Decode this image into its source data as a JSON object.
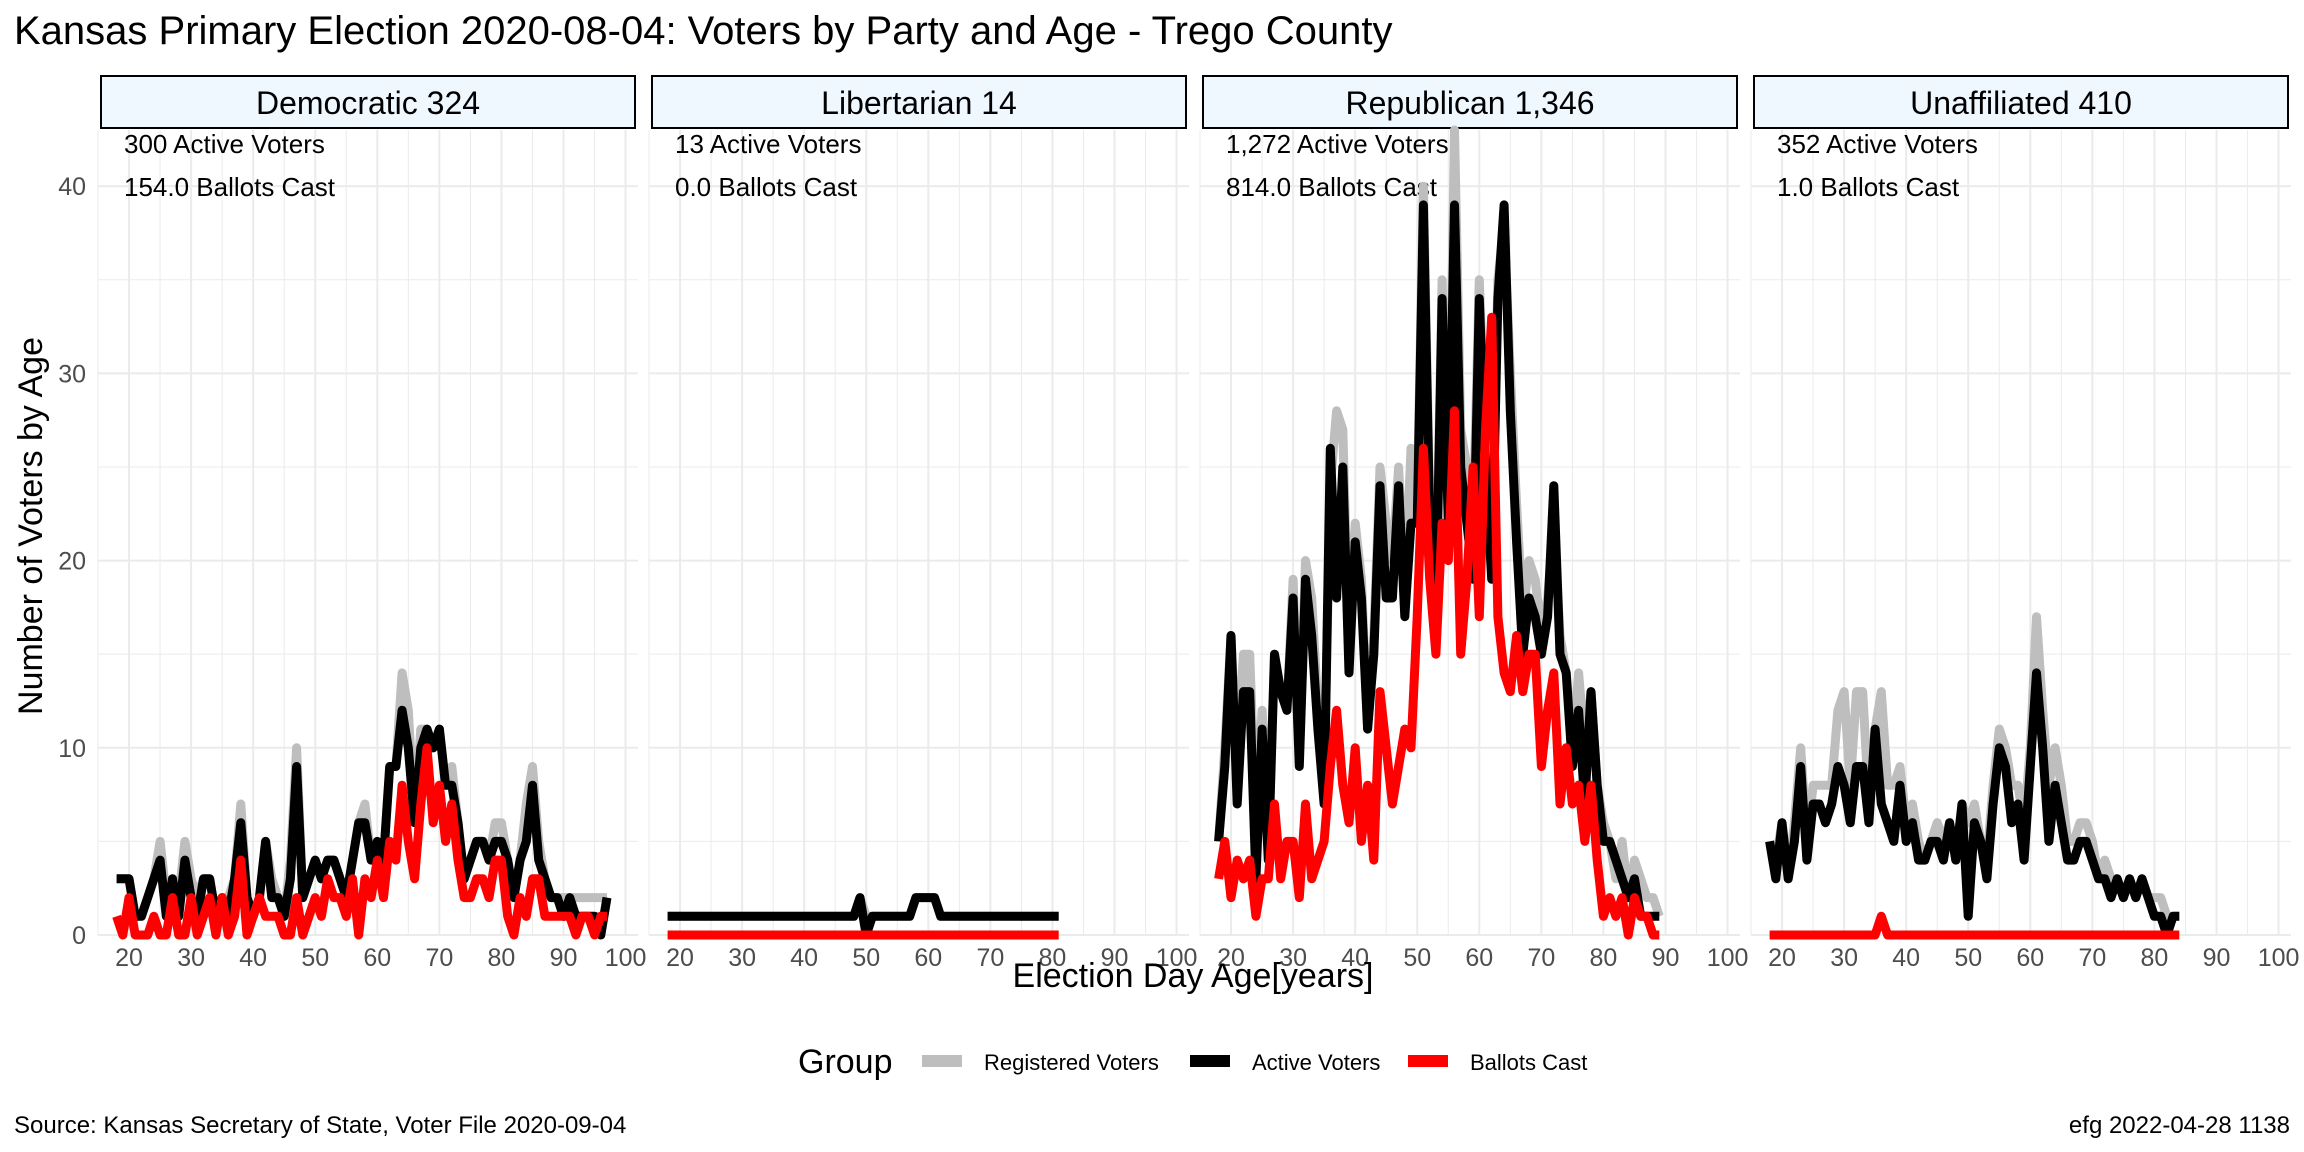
{
  "title": "Kansas Primary Election 2020-08-04:  Voters by Party and Age - Trego County",
  "xlabel": "Election Day Age[years]",
  "ylabel": "Number of Voters by Age",
  "legend": {
    "title": "Group",
    "items": [
      {
        "label": "Registered Voters",
        "color": "#bebebe"
      },
      {
        "label": "Active Voters",
        "color": "#000000"
      },
      {
        "label": "Ballots Cast",
        "color": "#ff0000"
      }
    ]
  },
  "caption_left": "Source:  Kansas Secretary of State, Voter File  2020-09-04",
  "caption_right": "efg 2022-04-28 1138",
  "chart_data": {
    "type": "line",
    "xlim": [
      15,
      102
    ],
    "ylim": [
      0,
      43
    ],
    "x_ticks": [
      "20",
      "30",
      "40",
      "50",
      "60",
      "70",
      "80",
      "90",
      "100"
    ],
    "y_ticks": [
      "0",
      "10",
      "20",
      "30",
      "40"
    ],
    "grid": true,
    "legend_position": "bottom",
    "colors": {
      "registered": "#bebebe",
      "active": "#000000",
      "ballots": "#ff0000"
    },
    "panels": [
      {
        "strip": "Democratic 324",
        "note1": "300 Active Voters",
        "note2": "154.0 Ballots Cast",
        "series": [
          {
            "name": "Registered Voters",
            "key": "registered",
            "x_start": 18,
            "values": [
              3,
              3,
              3,
              1,
              1,
              2,
              3,
              5,
              2,
              3,
              2,
              5,
              3,
              2,
              3,
              3,
              1,
              2,
              2,
              3,
              7,
              2,
              1,
              2,
              5,
              3,
              2,
              1,
              4,
              10,
              2,
              3,
              4,
              3,
              4,
              4,
              3,
              2,
              4,
              6,
              7,
              4,
              5,
              4,
              9,
              9,
              14,
              12,
              6,
              11,
              11,
              10,
              11,
              8,
              9,
              6,
              3,
              4,
              5,
              5,
              4,
              6,
              6,
              4,
              2,
              4,
              7,
              9,
              5,
              3,
              2,
              2,
              2,
              2,
              2,
              2,
              2,
              2,
              2,
              2
            ]
          },
          {
            "name": "Active Voters",
            "key": "active",
            "x_start": 18,
            "values": [
              3,
              3,
              3,
              1,
              1,
              2,
              3,
              4,
              1,
              3,
              1,
              4,
              2,
              1,
              3,
              3,
              1,
              2,
              1,
              3,
              6,
              2,
              1,
              2,
              5,
              2,
              2,
              1,
              3,
              9,
              2,
              3,
              4,
              3,
              4,
              4,
              3,
              2,
              4,
              6,
              6,
              4,
              5,
              4,
              9,
              9,
              12,
              10,
              6,
              10,
              11,
              10,
              11,
              8,
              8,
              6,
              3,
              4,
              5,
              5,
              4,
              5,
              5,
              4,
              2,
              4,
              5,
              8,
              4,
              3,
              2,
              2,
              1,
              2,
              1,
              1,
              1,
              1,
              0,
              2
            ]
          },
          {
            "name": "Ballots Cast",
            "key": "ballots",
            "x_start": 18,
            "values": [
              1,
              0,
              2,
              0,
              0,
              0,
              1,
              0,
              0,
              2,
              0,
              0,
              2,
              0,
              1,
              2,
              0,
              2,
              0,
              1,
              4,
              0,
              1,
              2,
              1,
              1,
              1,
              0,
              0,
              2,
              0,
              1,
              2,
              1,
              3,
              2,
              2,
              1,
              3,
              0,
              3,
              2,
              4,
              2,
              5,
              4,
              8,
              5,
              3,
              7,
              10,
              6,
              8,
              5,
              7,
              4,
              2,
              2,
              3,
              3,
              2,
              4,
              4,
              1,
              0,
              2,
              1,
              3,
              3,
              1,
              1,
              1,
              1,
              1,
              0,
              1,
              1,
              0,
              1,
              1
            ]
          }
        ]
      },
      {
        "strip": "Libertarian 14",
        "note1": "13 Active Voters",
        "note2": "0.0 Ballots Cast",
        "series": [
          {
            "name": "Registered Voters",
            "key": "registered",
            "x_start": 18,
            "values": [
              1,
              1,
              1,
              1,
              1,
              1,
              1,
              1,
              1,
              1,
              1,
              1,
              1,
              1,
              1,
              1,
              1,
              1,
              1,
              1,
              1,
              1,
              1,
              1,
              1,
              1,
              1,
              1,
              1,
              1,
              1,
              2,
              1,
              1,
              1,
              1,
              1,
              1,
              1,
              1,
              2,
              2,
              2,
              2,
              1,
              1,
              1,
              1,
              1,
              1,
              1,
              1,
              1,
              1,
              1,
              1,
              1,
              1,
              1,
              1,
              1,
              1,
              1,
              1
            ]
          },
          {
            "name": "Active Voters",
            "key": "active",
            "x_start": 18,
            "values": [
              1,
              1,
              1,
              1,
              1,
              1,
              1,
              1,
              1,
              1,
              1,
              1,
              1,
              1,
              1,
              1,
              1,
              1,
              1,
              1,
              1,
              1,
              1,
              1,
              1,
              1,
              1,
              1,
              1,
              1,
              1,
              2,
              0,
              1,
              1,
              1,
              1,
              1,
              1,
              1,
              2,
              2,
              2,
              2,
              1,
              1,
              1,
              1,
              1,
              1,
              1,
              1,
              1,
              1,
              1,
              1,
              1,
              1,
              1,
              1,
              1,
              1,
              1,
              1
            ]
          },
          {
            "name": "Ballots Cast",
            "key": "ballots",
            "x_start": 18,
            "values": [
              0,
              0,
              0,
              0,
              0,
              0,
              0,
              0,
              0,
              0,
              0,
              0,
              0,
              0,
              0,
              0,
              0,
              0,
              0,
              0,
              0,
              0,
              0,
              0,
              0,
              0,
              0,
              0,
              0,
              0,
              0,
              0,
              0,
              0,
              0,
              0,
              0,
              0,
              0,
              0,
              0,
              0,
              0,
              0,
              0,
              0,
              0,
              0,
              0,
              0,
              0,
              0,
              0,
              0,
              0,
              0,
              0,
              0,
              0,
              0,
              0,
              0,
              0,
              0
            ]
          }
        ]
      },
      {
        "strip": "Republican 1,346",
        "note1": "1,272 Active Voters",
        "note2": "814.0 Ballots Cast",
        "series": [
          {
            "name": "Registered Voters",
            "key": "registered",
            "x_start": 18,
            "values": [
              5,
              10,
              16,
              9,
              15,
              15,
              6,
              12,
              5,
              15,
              13,
              12,
              19,
              10,
              20,
              18,
              12,
              8,
              24,
              28,
              27,
              15,
              22,
              19,
              11,
              16,
              25,
              22,
              20,
              25,
              18,
              26,
              23,
              40,
              23,
              18,
              35,
              22,
              43,
              27,
              25,
              22,
              35,
              26,
              21,
              35,
              38,
              30,
              23,
              17,
              20,
              19,
              16,
              18,
              22,
              16,
              14,
              10,
              14,
              10,
              13,
              8,
              6,
              5,
              3,
              5,
              2,
              4,
              3,
              2,
              2,
              1
            ]
          },
          {
            "name": "Active Voters",
            "key": "active",
            "x_start": 18,
            "values": [
              5,
              9,
              16,
              7,
              13,
              13,
              3,
              11,
              4,
              15,
              13,
              12,
              18,
              9,
              19,
              16,
              11,
              7,
              26,
              18,
              25,
              14,
              21,
              18,
              11,
              15,
              24,
              18,
              18,
              24,
              17,
              22,
              22,
              39,
              22,
              17,
              34,
              22,
              39,
              25,
              22,
              19,
              34,
              25,
              19,
              34,
              39,
              28,
              21,
              15,
              18,
              17,
              15,
              17,
              24,
              15,
              14,
              9,
              12,
              7,
              13,
              8,
              5,
              5,
              4,
              3,
              2,
              3,
              1,
              1,
              1,
              1
            ]
          },
          {
            "name": "Ballots Cast",
            "key": "ballots",
            "x_start": 18,
            "values": [
              3,
              5,
              2,
              4,
              3,
              4,
              1,
              3,
              3,
              7,
              3,
              5,
              5,
              2,
              7,
              3,
              4,
              5,
              9,
              12,
              8,
              6,
              10,
              5,
              8,
              4,
              13,
              10,
              7,
              9,
              11,
              10,
              17,
              26,
              19,
              15,
              22,
              20,
              28,
              15,
              19,
              25,
              17,
              27,
              33,
              17,
              14,
              13,
              16,
              13,
              15,
              15,
              9,
              12,
              14,
              7,
              10,
              7,
              8,
              5,
              8,
              4,
              1,
              2,
              1,
              2,
              0,
              2,
              1,
              1,
              0,
              0
            ]
          }
        ]
      },
      {
        "strip": "Unaffiliated 410",
        "note1": "352 Active Voters",
        "note2": "1.0 Ballots Cast",
        "series": [
          {
            "name": "Registered Voters",
            "key": "registered",
            "x_start": 18,
            "values": [
              5,
              4,
              6,
              3,
              6,
              10,
              5,
              8,
              8,
              8,
              8,
              12,
              13,
              8,
              13,
              13,
              7,
              11,
              13,
              8,
              8,
              9,
              6,
              7,
              5,
              4,
              5,
              6,
              5,
              6,
              4,
              7,
              6,
              7,
              5,
              4,
              8,
              11,
              10,
              8,
              8,
              6,
              10,
              17,
              12,
              8,
              10,
              8,
              5,
              5,
              6,
              6,
              5,
              3,
              4,
              3,
              3,
              2,
              3,
              2,
              3,
              2,
              2,
              2,
              1,
              1,
              1
            ]
          },
          {
            "name": "Active Voters",
            "key": "active",
            "x_start": 18,
            "values": [
              5,
              3,
              6,
              3,
              5,
              9,
              4,
              7,
              7,
              6,
              7,
              9,
              8,
              6,
              9,
              9,
              6,
              11,
              7,
              6,
              5,
              8,
              5,
              6,
              4,
              4,
              5,
              5,
              4,
              6,
              4,
              7,
              1,
              6,
              5,
              3,
              7,
              10,
              9,
              6,
              7,
              4,
              9,
              14,
              10,
              5,
              8,
              6,
              4,
              4,
              5,
              5,
              4,
              3,
              3,
              2,
              3,
              2,
              3,
              2,
              3,
              2,
              1,
              1,
              0,
              1,
              1
            ]
          },
          {
            "name": "Ballots Cast",
            "key": "ballots",
            "x_start": 18,
            "values": [
              0,
              0,
              0,
              0,
              0,
              0,
              0,
              0,
              0,
              0,
              0,
              0,
              0,
              0,
              0,
              0,
              0,
              0,
              1,
              0,
              0,
              0,
              0,
              0,
              0,
              0,
              0,
              0,
              0,
              0,
              0,
              0,
              0,
              0,
              0,
              0,
              0,
              0,
              0,
              0,
              0,
              0,
              0,
              0,
              0,
              0,
              0,
              0,
              0,
              0,
              0,
              0,
              0,
              0,
              0,
              0,
              0,
              0,
              0,
              0,
              0,
              0,
              0,
              0,
              0,
              0,
              0
            ]
          }
        ]
      }
    ]
  }
}
